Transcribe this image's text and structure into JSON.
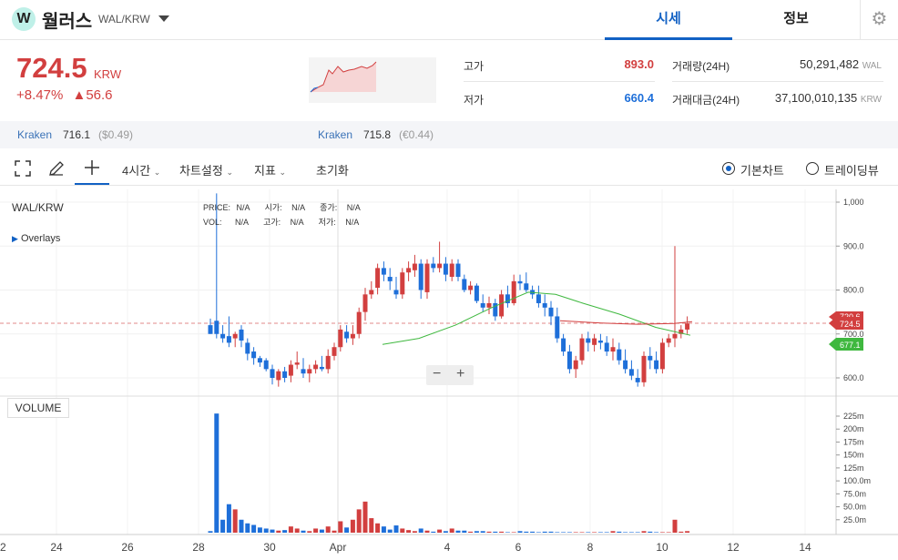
{
  "header": {
    "logo_letter": "W",
    "coin_name": "월러스",
    "pair": "WAL/KRW",
    "tabs": [
      {
        "label": "시세"
      },
      {
        "label": "정보"
      }
    ]
  },
  "summary": {
    "price": "724.5",
    "unit": "KRW",
    "change_pct": "+8.47%",
    "change_abs": "▲56.6",
    "high_label": "고가",
    "high_value": "893.0",
    "low_label": "저가",
    "low_value": "660.4",
    "volume_label": "거래량(24H)",
    "volume_value": "50,291,482",
    "volume_unit": "WAL",
    "amount_label": "거래대금(24H)",
    "amount_value": "37,100,010,135",
    "amount_unit": "KRW"
  },
  "exchanges": [
    {
      "name": "Kraken",
      "price": "716.1",
      "converted": "($0.49)"
    },
    {
      "name": "Kraken",
      "price": "715.8",
      "converted": "(€0.44)"
    }
  ],
  "toolbar": {
    "interval": "4시간",
    "chart_settings": "차트설정",
    "indicators": "지표",
    "reset": "초기화",
    "basic_chart": "기본차트",
    "trading_view": "트레이딩뷰"
  },
  "chart": {
    "symbol": "WAL/KRW",
    "overlays": "Overlays",
    "ohlc_row1": [
      "PRICE:",
      "N/A",
      "시가:",
      "N/A",
      "종가:",
      "N/A"
    ],
    "ohlc_row2": [
      "VOL:",
      "N/A",
      "고가:",
      "N/A",
      "저가:",
      "N/A"
    ],
    "price_ticks": [
      "1,000",
      "900.0",
      "800.0",
      "700.0",
      "600.0"
    ],
    "current_price_tag": "724.5",
    "hidden_tag": "720.6",
    "ma_tag": "677.1",
    "volume_label": "VOLUME",
    "volume_ticks": [
      "225m",
      "200m",
      "175m",
      "150m",
      "125m",
      "100.0m",
      "75.0m",
      "50.0m",
      "25.0m"
    ],
    "x_ticks": [
      "2",
      "24",
      "26",
      "28",
      "30",
      "Apr",
      "4",
      "6",
      "8",
      "10",
      "12",
      "14"
    ],
    "zoom_minus": "−",
    "zoom_plus": "+",
    "colors": {
      "up": "#d23f3f",
      "down": "#1e6fd9",
      "ma": "#3fb83f",
      "ma2": "#d23f3f"
    }
  },
  "chart_data": {
    "type": "candlestick",
    "pair": "WAL/KRW",
    "interval": "4시간",
    "ylim": [
      560,
      1025
    ],
    "candles": [
      [
        720,
        735,
        700,
        700
      ],
      [
        730,
        1020,
        690,
        700
      ],
      [
        700,
        720,
        680,
        690
      ],
      [
        695,
        740,
        670,
        680
      ],
      [
        690,
        705,
        670,
        700
      ],
      [
        710,
        720,
        670,
        685
      ],
      [
        680,
        690,
        640,
        655
      ],
      [
        660,
        670,
        630,
        645
      ],
      [
        645,
        650,
        625,
        635
      ],
      [
        640,
        645,
        615,
        620
      ],
      [
        620,
        630,
        585,
        600
      ],
      [
        595,
        620,
        580,
        615
      ],
      [
        615,
        625,
        590,
        600
      ],
      [
        605,
        640,
        590,
        630
      ],
      [
        630,
        660,
        620,
        635
      ],
      [
        620,
        645,
        600,
        610
      ],
      [
        610,
        630,
        590,
        620
      ],
      [
        620,
        640,
        610,
        630
      ],
      [
        625,
        650,
        615,
        620
      ],
      [
        620,
        665,
        610,
        650
      ],
      [
        650,
        680,
        640,
        670
      ],
      [
        670,
        720,
        660,
        710
      ],
      [
        705,
        720,
        680,
        690
      ],
      [
        690,
        720,
        675,
        700
      ],
      [
        700,
        760,
        690,
        750
      ],
      [
        750,
        805,
        730,
        790
      ],
      [
        790,
        820,
        780,
        800
      ],
      [
        805,
        860,
        790,
        850
      ],
      [
        850,
        865,
        820,
        835
      ],
      [
        830,
        850,
        800,
        820
      ],
      [
        800,
        830,
        780,
        790
      ],
      [
        790,
        850,
        780,
        840
      ],
      [
        840,
        865,
        820,
        850
      ],
      [
        845,
        880,
        830,
        860
      ],
      [
        860,
        870,
        780,
        800
      ],
      [
        795,
        870,
        780,
        860
      ],
      [
        860,
        875,
        840,
        850
      ],
      [
        850,
        910,
        840,
        860
      ],
      [
        860,
        875,
        820,
        835
      ],
      [
        830,
        870,
        820,
        860
      ],
      [
        860,
        870,
        820,
        830
      ],
      [
        825,
        835,
        795,
        800
      ],
      [
        800,
        820,
        790,
        810
      ],
      [
        810,
        815,
        770,
        775
      ],
      [
        770,
        790,
        750,
        760
      ],
      [
        760,
        785,
        745,
        770
      ],
      [
        770,
        780,
        730,
        740
      ],
      [
        740,
        800,
        735,
        790
      ],
      [
        790,
        810,
        760,
        770
      ],
      [
        770,
        835,
        765,
        820
      ],
      [
        820,
        835,
        800,
        815
      ],
      [
        815,
        840,
        795,
        800
      ],
      [
        800,
        810,
        780,
        790
      ],
      [
        790,
        810,
        760,
        770
      ],
      [
        770,
        790,
        740,
        760
      ],
      [
        760,
        775,
        720,
        740
      ],
      [
        740,
        760,
        680,
        690
      ],
      [
        690,
        700,
        650,
        660
      ],
      [
        660,
        675,
        610,
        620
      ],
      [
        620,
        650,
        600,
        640
      ],
      [
        640,
        700,
        630,
        690
      ],
      [
        690,
        705,
        660,
        680
      ],
      [
        675,
        700,
        660,
        690
      ],
      [
        685,
        700,
        665,
        680
      ],
      [
        680,
        695,
        650,
        660
      ],
      [
        660,
        690,
        640,
        670
      ],
      [
        665,
        680,
        630,
        640
      ],
      [
        640,
        665,
        610,
        620
      ],
      [
        620,
        640,
        595,
        605
      ],
      [
        600,
        620,
        580,
        590
      ],
      [
        590,
        660,
        580,
        650
      ],
      [
        650,
        670,
        620,
        640
      ],
      [
        640,
        660,
        610,
        620
      ],
      [
        620,
        690,
        610,
        680
      ],
      [
        680,
        700,
        670,
        690
      ],
      [
        690,
        900,
        670,
        700
      ],
      [
        700,
        720,
        690,
        710
      ],
      [
        710,
        740,
        700,
        724
      ]
    ],
    "ma_green": [
      [
        420,
        676
      ],
      [
        460,
        690
      ],
      [
        500,
        720
      ],
      [
        540,
        760
      ],
      [
        580,
        795
      ],
      [
        610,
        790
      ],
      [
        640,
        770
      ],
      [
        680,
        745
      ],
      [
        720,
        715
      ],
      [
        758,
        697
      ]
    ],
    "ma_red": [
      [
        615,
        730
      ],
      [
        660,
        725
      ],
      [
        700,
        722
      ],
      [
        740,
        724
      ],
      [
        760,
        728
      ]
    ],
    "volumes": [
      3,
      230,
      25,
      55,
      45,
      25,
      18,
      15,
      10,
      8,
      6,
      4,
      5,
      12,
      8,
      4,
      3,
      8,
      6,
      12,
      4,
      22,
      10,
      25,
      45,
      60,
      28,
      18,
      12,
      6,
      14,
      8,
      5,
      3,
      8,
      4,
      2,
      6,
      3,
      8,
      4,
      4,
      2,
      3,
      3,
      2,
      2,
      2,
      1,
      1,
      3,
      2,
      2,
      1,
      2,
      2,
      1,
      1,
      1,
      1,
      1,
      1,
      1,
      1,
      1,
      3,
      2,
      1,
      1,
      1,
      3,
      2,
      1,
      1,
      1,
      25,
      2,
      3
    ]
  }
}
